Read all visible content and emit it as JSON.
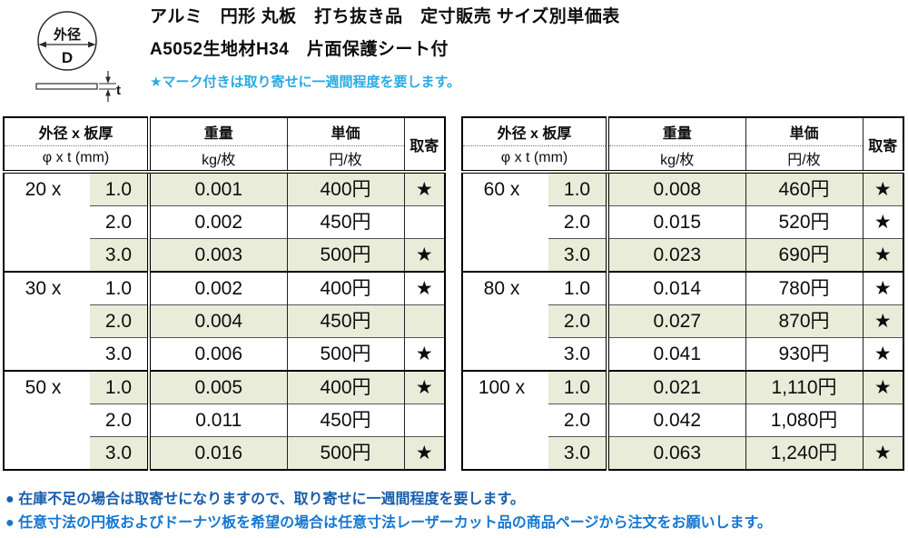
{
  "diagram": {
    "outer_diameter_label": "外径",
    "diameter_symbol": "D",
    "thickness_symbol": "t"
  },
  "header": {
    "title_line1": "アルミ　円形 丸板　打ち抜き品　定寸販売 サイズ別単価表",
    "title_line2": "A5052生地材H34　片面保護シート付",
    "note": "★マーク付きは取り寄せに一週間程度を要します。"
  },
  "columns": {
    "size": "外径 x 板厚",
    "size_sub": "φ x t (mm)",
    "weight": "重量",
    "weight_sub": "kg/枚",
    "price": "単価",
    "price_sub": "円/枚",
    "backorder": "取寄"
  },
  "star_glyph": "★",
  "colors": {
    "accent_blue": "#29abe2",
    "shaded_row": "#e9ecd9",
    "footer_blue_1": "#185eac",
    "footer_blue_2": "#1478d2"
  },
  "tables": [
    {
      "groups": [
        {
          "diameter": "20 x",
          "rows": [
            {
              "thickness": "1.0",
              "weight": "0.001",
              "price": "400円",
              "backorder": true
            },
            {
              "thickness": "2.0",
              "weight": "0.002",
              "price": "450円",
              "backorder": false
            },
            {
              "thickness": "3.0",
              "weight": "0.003",
              "price": "500円",
              "backorder": true
            }
          ]
        },
        {
          "diameter": "30 x",
          "rows": [
            {
              "thickness": "1.0",
              "weight": "0.002",
              "price": "400円",
              "backorder": true
            },
            {
              "thickness": "2.0",
              "weight": "0.004",
              "price": "450円",
              "backorder": false
            },
            {
              "thickness": "3.0",
              "weight": "0.006",
              "price": "500円",
              "backorder": true
            }
          ]
        },
        {
          "diameter": "50 x",
          "rows": [
            {
              "thickness": "1.0",
              "weight": "0.005",
              "price": "400円",
              "backorder": true
            },
            {
              "thickness": "2.0",
              "weight": "0.011",
              "price": "450円",
              "backorder": false
            },
            {
              "thickness": "3.0",
              "weight": "0.016",
              "price": "500円",
              "backorder": true
            }
          ]
        }
      ]
    },
    {
      "groups": [
        {
          "diameter": "60 x",
          "rows": [
            {
              "thickness": "1.0",
              "weight": "0.008",
              "price": "460円",
              "backorder": true
            },
            {
              "thickness": "2.0",
              "weight": "0.015",
              "price": "520円",
              "backorder": true
            },
            {
              "thickness": "3.0",
              "weight": "0.023",
              "price": "690円",
              "backorder": true
            }
          ]
        },
        {
          "diameter": "80 x",
          "rows": [
            {
              "thickness": "1.0",
              "weight": "0.014",
              "price": "780円",
              "backorder": true
            },
            {
              "thickness": "2.0",
              "weight": "0.027",
              "price": "870円",
              "backorder": true
            },
            {
              "thickness": "3.0",
              "weight": "0.041",
              "price": "930円",
              "backorder": true
            }
          ]
        },
        {
          "diameter": "100 x",
          "rows": [
            {
              "thickness": "1.0",
              "weight": "0.021",
              "price": "1,110円",
              "backorder": true
            },
            {
              "thickness": "2.0",
              "weight": "0.042",
              "price": "1,080円",
              "backorder": false
            },
            {
              "thickness": "3.0",
              "weight": "0.063",
              "price": "1,240円",
              "backorder": true
            }
          ]
        }
      ]
    }
  ],
  "footer": {
    "notes": [
      "● 在庫不足の場合は取寄せになりますので、取り寄せに一週間程度を要します。",
      "● 任意寸法の円板およびドーナツ板を希望の場合は任意寸法レーザーカット品の商品ページから注文をお願いします。"
    ]
  }
}
